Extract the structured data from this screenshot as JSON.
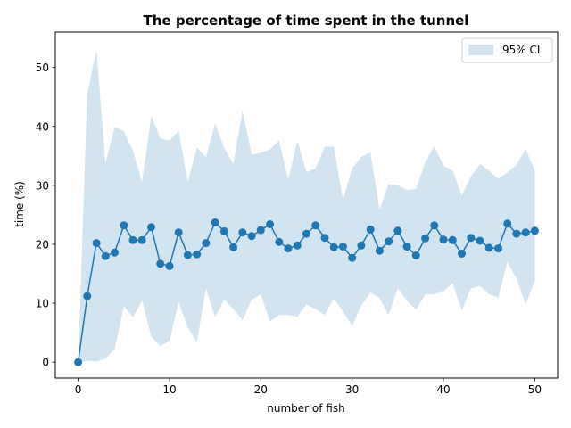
{
  "chart_data": {
    "type": "line",
    "title": "The percentage of time spent in the tunnel",
    "xlabel": "number of fish",
    "ylabel": "time (%)",
    "xlim": [
      -2.5,
      52.5
    ],
    "ylim": [
      -2.7,
      56.0
    ],
    "xticks": [
      0,
      10,
      20,
      30,
      40,
      50
    ],
    "yticks": [
      0,
      10,
      20,
      30,
      40,
      50
    ],
    "grid": false,
    "legend_position": "top-right",
    "colors": {
      "line": "#1f77b4",
      "band": "#1f77b4",
      "band_opacity": 0.2
    },
    "x": [
      0,
      1,
      2,
      3,
      4,
      5,
      6,
      7,
      8,
      9,
      10,
      11,
      12,
      13,
      14,
      15,
      16,
      17,
      18,
      19,
      20,
      21,
      22,
      23,
      24,
      25,
      26,
      27,
      28,
      29,
      30,
      31,
      32,
      33,
      34,
      35,
      36,
      37,
      38,
      39,
      40,
      41,
      42,
      43,
      44,
      45,
      46,
      47,
      48,
      49,
      50
    ],
    "series": [
      {
        "values": [
          0.0,
          11.2,
          20.2,
          18.0,
          18.6,
          23.2,
          20.7,
          20.7,
          22.9,
          16.7,
          16.3,
          22.0,
          18.2,
          18.3,
          20.2,
          23.7,
          22.2,
          19.5,
          22.0,
          21.4,
          22.4,
          23.4,
          20.4,
          19.3,
          19.8,
          21.8,
          23.2,
          21.1,
          19.5,
          19.6,
          17.7,
          19.8,
          22.5,
          18.9,
          20.5,
          22.3,
          19.6,
          18.1,
          21.0,
          23.2,
          20.8,
          20.7,
          18.4,
          21.1,
          20.6,
          19.4,
          19.3,
          23.5,
          21.8,
          22.0,
          22.3
        ]
      }
    ],
    "band": {
      "name": "95% CI",
      "upper": [
        0.0,
        45.5,
        53.0,
        33.8,
        39.9,
        39.2,
        35.9,
        30.5,
        41.8,
        38.0,
        37.6,
        39.3,
        30.6,
        36.4,
        34.8,
        40.5,
        36.3,
        33.6,
        42.7,
        35.2,
        35.5,
        36.1,
        37.6,
        31.0,
        37.5,
        32.2,
        32.9,
        36.5,
        36.6,
        27.5,
        32.9,
        34.8,
        35.6,
        25.9,
        30.2,
        30.0,
        29.2,
        29.4,
        33.9,
        36.7,
        33.3,
        32.5,
        28.3,
        31.5,
        33.6,
        32.5,
        31.1,
        32.2,
        33.5,
        36.2,
        32.5
      ],
      "lower": [
        0.0,
        0.2,
        0.1,
        0.6,
        2.2,
        9.5,
        7.6,
        10.5,
        4.4,
        2.7,
        3.6,
        10.2,
        5.9,
        3.4,
        12.5,
        7.6,
        10.6,
        9.0,
        7.1,
        10.6,
        11.5,
        6.9,
        8.0,
        8.0,
        7.7,
        9.8,
        9.0,
        8.0,
        10.8,
        8.6,
        6.1,
        9.6,
        11.8,
        10.9,
        8.0,
        12.6,
        10.4,
        8.9,
        11.5,
        11.5,
        12.0,
        13.4,
        8.8,
        12.5,
        12.9,
        11.5,
        11.0,
        17.0,
        14.2,
        9.8,
        13.8
      ]
    }
  }
}
